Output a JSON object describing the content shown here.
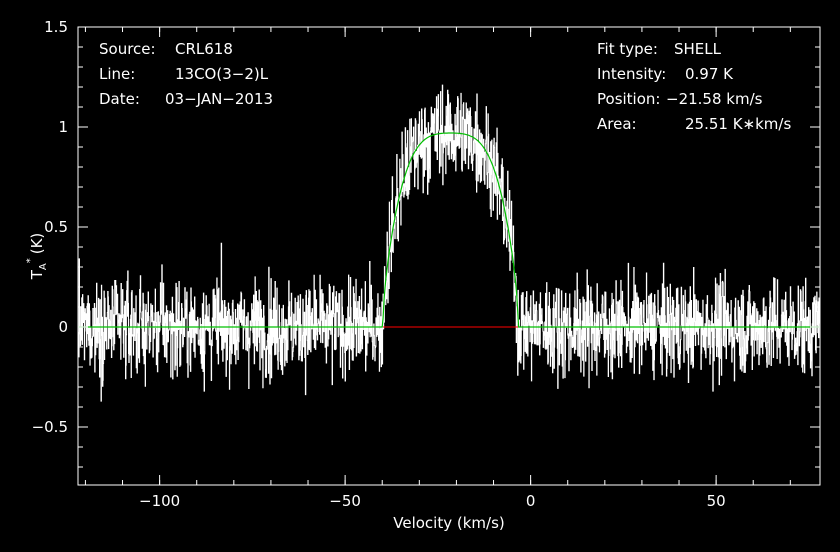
{
  "header_left": [
    {
      "label": "Source:",
      "value": "CRL618"
    },
    {
      "label": "Line:",
      "value": "13CO(3−2)L"
    },
    {
      "label": "Date:",
      "value": "03−JAN−2013"
    }
  ],
  "header_right": [
    {
      "label": "Fit type:",
      "value": "SHELL"
    },
    {
      "label": "Intensity:",
      "value": "0.97 K"
    },
    {
      "label": "Position:",
      "value": "−21.58 km/s"
    },
    {
      "label": "Area:",
      "value": "25.51 K∗km/s"
    }
  ],
  "chart_data": {
    "type": "line",
    "xlabel": "Velocity (km/s)",
    "ylabel_main": "T",
    "ylabel_sub": "A",
    "ylabel_sup": "*",
    "ylabel_unit": "(K)",
    "xlim": [
      -122,
      78
    ],
    "ylim": [
      -0.79,
      1.5
    ],
    "x_ticks": [
      {
        "value": -100,
        "label": "−100"
      },
      {
        "value": -50,
        "label": "−50"
      },
      {
        "value": 0,
        "label": "0"
      },
      {
        "value": 50,
        "label": "50"
      }
    ],
    "y_ticks": [
      {
        "value": -0.5,
        "label": "−0.5"
      },
      {
        "value": 0,
        "label": "0"
      },
      {
        "value": 0.5,
        "label": "0.5"
      },
      {
        "value": 1,
        "label": "1"
      },
      {
        "value": 1.5,
        "label": "1.5"
      }
    ],
    "x_minor_step": 10,
    "y_minor_step": 0.1,
    "grid": false,
    "spectrum": {
      "color": "#ffffff",
      "noise_rms": 0.17,
      "channel_width_kms": 0.1
    },
    "fit": {
      "type": "SHELL",
      "color": "#00c000",
      "center_kms": -21.58,
      "peak_K": 0.97,
      "half_width_kms": 18.2,
      "horn_to_center": 1.0,
      "area_Kkms": 25.51
    },
    "fit_window": {
      "color": "#ff0000",
      "x_range": [
        -39.8,
        -3.4
      ]
    }
  }
}
